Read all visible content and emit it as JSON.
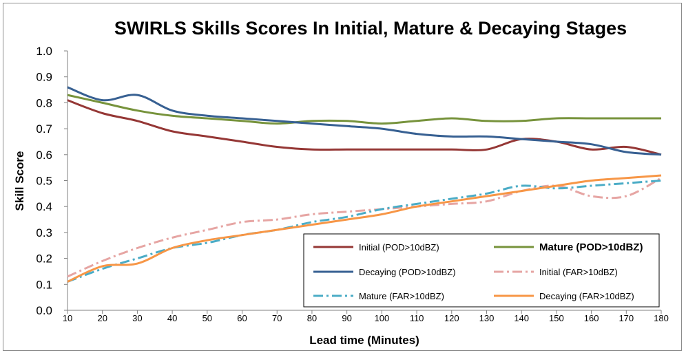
{
  "chart_data": {
    "type": "line",
    "title": "SWIRLS Skills Scores In Initial, Mature & Decaying Stages",
    "xlabel": "Lead time (Minutes)",
    "ylabel": "Skill Score",
    "x": [
      10,
      20,
      30,
      40,
      50,
      60,
      70,
      80,
      90,
      100,
      110,
      120,
      130,
      140,
      150,
      160,
      170,
      180
    ],
    "ylim": [
      0,
      1.0
    ],
    "yticks": [
      "0.0",
      "0.1",
      "0.2",
      "0.3",
      "0.4",
      "0.5",
      "0.6",
      "0.7",
      "0.8",
      "0.9",
      "1.0"
    ],
    "grid": false,
    "legend_position": "bottom-right",
    "series": [
      {
        "name": "Initial (POD>10dBZ)",
        "color": "#953735",
        "dash": "solid",
        "values": [
          0.81,
          0.76,
          0.73,
          0.69,
          0.67,
          0.65,
          0.63,
          0.62,
          0.62,
          0.62,
          0.62,
          0.62,
          0.62,
          0.66,
          0.65,
          0.62,
          0.63,
          0.6
        ]
      },
      {
        "name": "Mature (POD>10dBZ)",
        "color": "#77933c",
        "dash": "solid",
        "bold_label": true,
        "values": [
          0.83,
          0.8,
          0.77,
          0.75,
          0.74,
          0.73,
          0.72,
          0.73,
          0.73,
          0.72,
          0.73,
          0.74,
          0.73,
          0.73,
          0.74,
          0.74,
          0.74,
          0.74
        ]
      },
      {
        "name": "Decaying (POD>10dBZ)",
        "color": "#376092",
        "dash": "solid",
        "values": [
          0.86,
          0.81,
          0.83,
          0.77,
          0.75,
          0.74,
          0.73,
          0.72,
          0.71,
          0.7,
          0.68,
          0.67,
          0.67,
          0.66,
          0.65,
          0.64,
          0.61,
          0.6
        ]
      },
      {
        "name": "Initial (FAR>10dBZ)",
        "color": "#e6a5a3",
        "dash": "dashdot",
        "values": [
          0.13,
          0.19,
          0.24,
          0.28,
          0.31,
          0.34,
          0.35,
          0.37,
          0.38,
          0.39,
          0.4,
          0.41,
          0.42,
          0.46,
          0.48,
          0.44,
          0.44,
          0.51
        ]
      },
      {
        "name": "Mature (FAR>10dBZ)",
        "color": "#4bacc6",
        "dash": "dashdot",
        "values": [
          0.11,
          0.16,
          0.2,
          0.24,
          0.26,
          0.29,
          0.31,
          0.34,
          0.36,
          0.39,
          0.41,
          0.43,
          0.45,
          0.48,
          0.47,
          0.48,
          0.49,
          0.5
        ]
      },
      {
        "name": "Decaying (FAR>10dBZ)",
        "color": "#f79646",
        "dash": "solid",
        "values": [
          0.11,
          0.17,
          0.18,
          0.24,
          0.27,
          0.29,
          0.31,
          0.33,
          0.35,
          0.37,
          0.4,
          0.42,
          0.44,
          0.46,
          0.48,
          0.5,
          0.51,
          0.52
        ]
      }
    ]
  }
}
